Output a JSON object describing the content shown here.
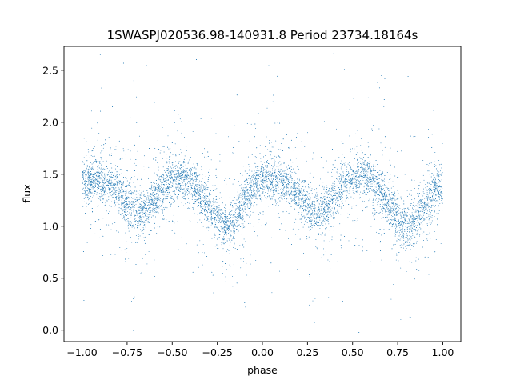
{
  "chart_data": {
    "type": "scatter",
    "title": "1SWASPJ020536.98-140931.8 Period 23734.18164s",
    "xlabel": "phase",
    "ylabel": "flux",
    "xlim": [
      -1.1,
      1.1
    ],
    "ylim": [
      -0.11,
      2.73
    ],
    "x_ticks": [
      -1.0,
      -0.75,
      -0.5,
      -0.25,
      0.0,
      0.25,
      0.5,
      0.75,
      1.0
    ],
    "x_tick_labels": [
      "−1.00",
      "−0.75",
      "−0.50",
      "−0.25",
      "0.00",
      "0.25",
      "0.50",
      "0.75",
      "1.00"
    ],
    "y_ticks": [
      0.0,
      0.5,
      1.0,
      1.5,
      2.0,
      2.5
    ],
    "y_tick_labels": [
      "0.0",
      "0.5",
      "1.0",
      "1.5",
      "2.0",
      "2.5"
    ],
    "grid": false,
    "legend": "none",
    "point_color": "#1f77b4",
    "series": [
      {
        "phase_range": [
          -1.0,
          1.0
        ],
        "x": [
          -1.0,
          -0.95,
          -0.9,
          -0.85,
          -0.8,
          -0.75,
          -0.7,
          -0.65,
          -0.6,
          -0.55,
          -0.5,
          -0.45,
          -0.4,
          -0.35,
          -0.3,
          -0.25,
          -0.2,
          -0.15,
          -0.1,
          -0.05,
          0.0,
          0.05,
          0.1,
          0.15,
          0.2,
          0.25,
          0.3,
          0.35,
          0.4,
          0.45,
          0.5,
          0.55,
          0.6,
          0.65,
          0.7,
          0.75,
          0.8,
          0.85,
          0.9,
          0.95,
          1.0
        ],
        "y": [
          1.4,
          1.44,
          1.45,
          1.4,
          1.32,
          1.22,
          1.14,
          1.16,
          1.27,
          1.37,
          1.43,
          1.47,
          1.44,
          1.33,
          1.2,
          1.06,
          0.98,
          1.07,
          1.24,
          1.38,
          1.43,
          1.45,
          1.43,
          1.38,
          1.3,
          1.21,
          1.13,
          1.16,
          1.28,
          1.39,
          1.44,
          1.48,
          1.44,
          1.34,
          1.2,
          1.07,
          0.99,
          1.06,
          1.22,
          1.35,
          1.4
        ]
      }
    ]
  }
}
